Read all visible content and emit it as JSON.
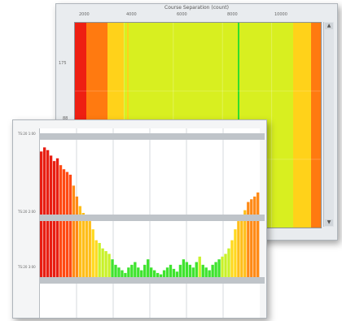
{
  "back_window": {
    "title": "Course Separation (count)",
    "x_ticks": [
      "2000",
      "4000",
      "6000",
      "8000",
      "10000"
    ],
    "y_ticks": [
      "175",
      "88"
    ],
    "colormap": [
      "#ee1f12",
      "#ff7a10",
      "#ffd21a",
      "#d8ef20",
      "#32df2c"
    ]
  },
  "front_window": {
    "panel_labels": [
      "TS:20\n1:00",
      "TS:20\n2:00",
      "TS:20\n3:00"
    ]
  },
  "chart_data": {
    "type": "bar",
    "title": "",
    "xlabel": "",
    "ylabel": "",
    "ylim": [
      0,
      1
    ],
    "values": [
      0.95,
      0.98,
      0.96,
      0.92,
      0.88,
      0.9,
      0.85,
      0.82,
      0.8,
      0.78,
      0.7,
      0.62,
      0.55,
      0.5,
      0.46,
      0.44,
      0.38,
      0.3,
      0.28,
      0.24,
      0.22,
      0.2,
      0.16,
      0.12,
      0.1,
      0.08,
      0.06,
      0.1,
      0.12,
      0.14,
      0.1,
      0.08,
      0.12,
      0.16,
      0.1,
      0.08,
      0.06,
      0.05,
      0.08,
      0.1,
      0.12,
      0.09,
      0.07,
      0.12,
      0.16,
      0.14,
      0.12,
      0.1,
      0.14,
      0.18,
      0.12,
      0.1,
      0.08,
      0.12,
      0.14,
      0.16,
      0.18,
      0.2,
      0.24,
      0.3,
      0.38,
      0.44,
      0.48,
      0.52,
      0.58,
      0.6,
      0.62,
      0.65
    ]
  }
}
